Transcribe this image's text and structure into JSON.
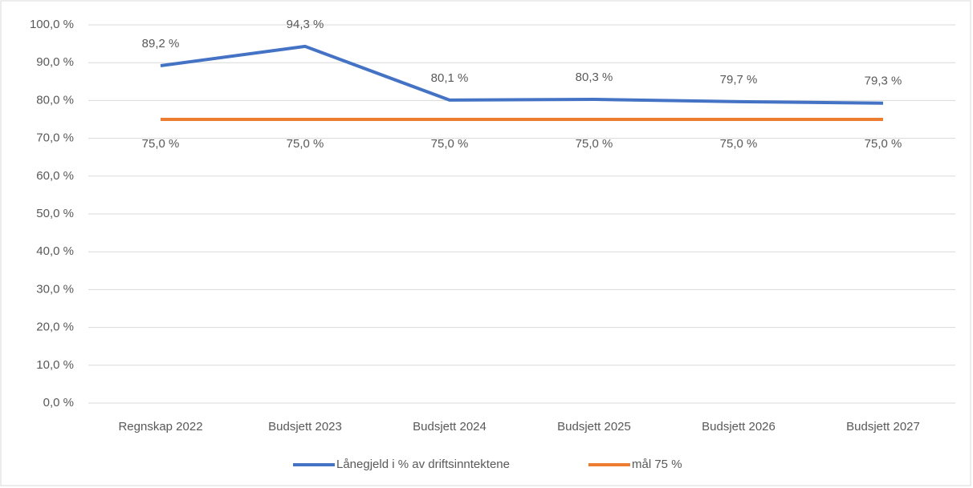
{
  "chart_data": {
    "type": "line",
    "categories": [
      "Regnskap 2022",
      "Budsjett 2023",
      "Budsjett 2024",
      "Budsjett 2025",
      "Budsjett 2026",
      "Budsjett 2027"
    ],
    "series": [
      {
        "name": "Lånegjeld i % av driftsinntektene",
        "color": "#4472c4",
        "values": [
          89.2,
          94.3,
          80.1,
          80.3,
          79.7,
          79.3
        ],
        "value_labels": [
          "89,2 %",
          "94,3 %",
          "80,1 %",
          "80,3 %",
          "79,7 %",
          "79,3 %"
        ]
      },
      {
        "name": "mål 75 %",
        "color": "#ed7d31",
        "values": [
          75,
          75,
          75,
          75,
          75,
          75
        ],
        "value_labels": [
          "75,0 %",
          "75,0 %",
          "75,0 %",
          "75,0 %",
          "75,0 %",
          "75,0 %"
        ]
      }
    ],
    "ylim": [
      0,
      100
    ],
    "yticks": [
      {
        "value": 0,
        "label": "0,0 %"
      },
      {
        "value": 10,
        "label": "10,0 %"
      },
      {
        "value": 20,
        "label": "20,0 %"
      },
      {
        "value": 30,
        "label": "30,0 %"
      },
      {
        "value": 40,
        "label": "40,0 %"
      },
      {
        "value": 50,
        "label": "50,0 %"
      },
      {
        "value": 60,
        "label": "60,0 %"
      },
      {
        "value": 70,
        "label": "70,0 %"
      },
      {
        "value": 80,
        "label": "80,0 %"
      },
      {
        "value": 90,
        "label": "90,0 %"
      },
      {
        "value": 100,
        "label": "100,0 %"
      }
    ],
    "grid": true,
    "legend": "bottom"
  }
}
